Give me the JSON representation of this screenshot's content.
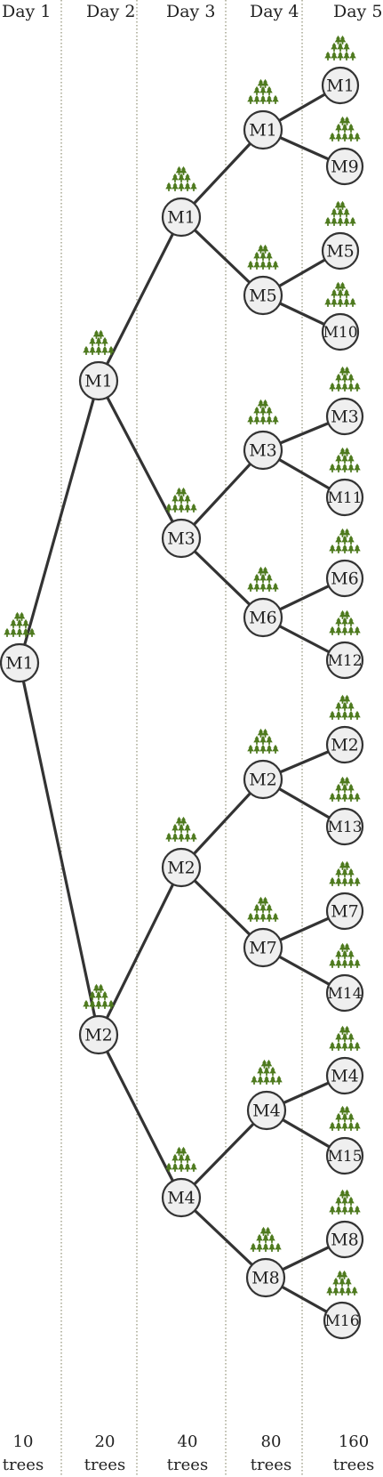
{
  "days": [
    "Day 1",
    "Day 2",
    "Day 3",
    "Day 4",
    "Day 5"
  ],
  "footers": [
    {
      "count": "10",
      "unit": "trees"
    },
    {
      "count": "20",
      "unit": "trees"
    },
    {
      "count": "40",
      "unit": "trees"
    },
    {
      "count": "80",
      "unit": "trees"
    },
    {
      "count": "160",
      "unit": "trees"
    }
  ],
  "nodes": [
    {
      "id": "d1_M1",
      "label": "M1",
      "day": 1
    },
    {
      "id": "d2_M1",
      "label": "M1",
      "day": 2,
      "parent": "d1_M1"
    },
    {
      "id": "d2_M2",
      "label": "M2",
      "day": 2,
      "parent": "d1_M1"
    },
    {
      "id": "d3_M1",
      "label": "M1",
      "day": 3,
      "parent": "d2_M1"
    },
    {
      "id": "d3_M3",
      "label": "M3",
      "day": 3,
      "parent": "d2_M1"
    },
    {
      "id": "d3_M2",
      "label": "M2",
      "day": 3,
      "parent": "d2_M2"
    },
    {
      "id": "d3_M4",
      "label": "M4",
      "day": 3,
      "parent": "d2_M2"
    },
    {
      "id": "d4_M1",
      "label": "M1",
      "day": 4,
      "parent": "d3_M1"
    },
    {
      "id": "d4_M5",
      "label": "M5",
      "day": 4,
      "parent": "d3_M1"
    },
    {
      "id": "d4_M3",
      "label": "M3",
      "day": 4,
      "parent": "d3_M3"
    },
    {
      "id": "d4_M6",
      "label": "M6",
      "day": 4,
      "parent": "d3_M3"
    },
    {
      "id": "d4_M2",
      "label": "M2",
      "day": 4,
      "parent": "d3_M2"
    },
    {
      "id": "d4_M7",
      "label": "M7",
      "day": 4,
      "parent": "d3_M2"
    },
    {
      "id": "d4_M4",
      "label": "M4",
      "day": 4,
      "parent": "d3_M4"
    },
    {
      "id": "d4_M8",
      "label": "M8",
      "day": 4,
      "parent": "d3_M4"
    },
    {
      "id": "d5_M1",
      "label": "M1",
      "day": 5,
      "parent": "d4_M1"
    },
    {
      "id": "d5_M9",
      "label": "M9",
      "day": 5,
      "parent": "d4_M1"
    },
    {
      "id": "d5_M5",
      "label": "M5",
      "day": 5,
      "parent": "d4_M5"
    },
    {
      "id": "d5_M10",
      "label": "M10",
      "day": 5,
      "parent": "d4_M5"
    },
    {
      "id": "d5_M3",
      "label": "M3",
      "day": 5,
      "parent": "d4_M3"
    },
    {
      "id": "d5_M11",
      "label": "M11",
      "day": 5,
      "parent": "d4_M3"
    },
    {
      "id": "d5_M6",
      "label": "M6",
      "day": 5,
      "parent": "d4_M6"
    },
    {
      "id": "d5_M12",
      "label": "M12",
      "day": 5,
      "parent": "d4_M6"
    },
    {
      "id": "d5_M2",
      "label": "M2",
      "day": 5,
      "parent": "d4_M2"
    },
    {
      "id": "d5_M13",
      "label": "M13",
      "day": 5,
      "parent": "d4_M2"
    },
    {
      "id": "d5_M7",
      "label": "M7",
      "day": 5,
      "parent": "d4_M7"
    },
    {
      "id": "d5_M14",
      "label": "M14",
      "day": 5,
      "parent": "d4_M7"
    },
    {
      "id": "d5_M4",
      "label": "M4",
      "day": 5,
      "parent": "d4_M4"
    },
    {
      "id": "d5_M15",
      "label": "M15",
      "day": 5,
      "parent": "d4_M4"
    },
    {
      "id": "d5_M8",
      "label": "M8",
      "day": 5,
      "parent": "d4_M8"
    },
    {
      "id": "d5_M16",
      "label": "M16",
      "day": 5,
      "parent": "d4_M8"
    }
  ],
  "colors": {
    "tree": "#4e7a1e",
    "node_fill": "#efefef",
    "node_stroke": "#333333",
    "edge": "#333333",
    "divider": "#7a7a5a"
  },
  "icon": "tree-cluster-icon"
}
